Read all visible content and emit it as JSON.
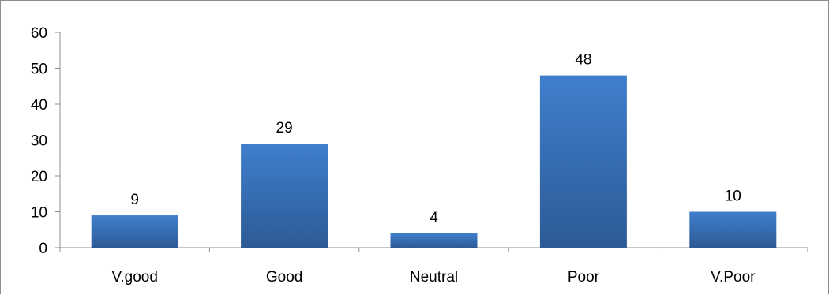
{
  "chart_data": {
    "type": "bar",
    "categories": [
      "V.good",
      "Good",
      "Neutral",
      "Poor",
      "V.Poor"
    ],
    "values": [
      9,
      29,
      4,
      48,
      10
    ],
    "data_labels": [
      "9",
      "29",
      "4",
      "48",
      "10"
    ],
    "y_ticks": [
      "0",
      "10",
      "20",
      "30",
      "40",
      "50",
      "60"
    ],
    "ylim": [
      0,
      60
    ],
    "title": "",
    "xlabel": "",
    "ylabel": "",
    "grid": false,
    "legend": "none",
    "colors": {
      "bar_top": "#3f7fcc",
      "bar_bottom": "#2d5a96",
      "axis": "#8c8c8c"
    }
  }
}
